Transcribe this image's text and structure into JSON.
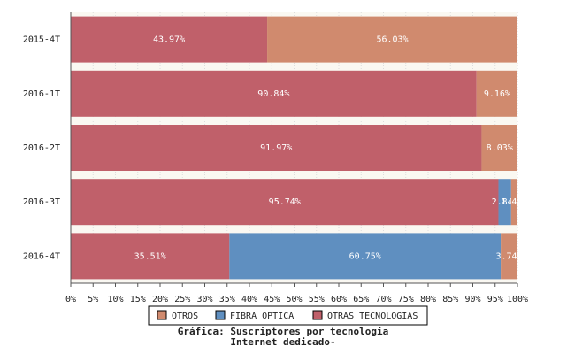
{
  "chart_data": {
    "type": "stacked-barh",
    "title": [
      "Gráfica: Suscriptores por tecnologia",
      "Internet dedicado-"
    ],
    "categories": [
      "2015-4T",
      "2016-1T",
      "2016-2T",
      "2016-3T",
      "2016-4T"
    ],
    "series": [
      {
        "name": "OTROS",
        "color": "#d08a6e",
        "values": [
          56.03,
          9.16,
          8.03,
          1.42,
          3.74
        ],
        "value_labels": [
          "56.03%",
          "9.16%",
          "8.03%",
          "1.42%",
          "3.74%"
        ]
      },
      {
        "name": "FIBRA OPTICA",
        "color": "#5f8fc0",
        "values": [
          null,
          null,
          null,
          2.84,
          60.75
        ],
        "value_labels": [
          null,
          null,
          null,
          "2.84%",
          "60.75%"
        ]
      },
      {
        "name": "OTRAS TECNOLOGIAS",
        "color": "#c0606a",
        "values": [
          43.97,
          90.84,
          91.97,
          95.74,
          35.51
        ],
        "value_labels": [
          "43.97%",
          "90.84%",
          "91.97%",
          "95.74%",
          "35.51%"
        ]
      }
    ],
    "xlim": [
      0,
      100
    ],
    "xticks": [
      {
        "value": 0,
        "label": "0%"
      },
      {
        "value": 5,
        "label": "5%"
      },
      {
        "value": 10,
        "label": "10%"
      },
      {
        "value": 15,
        "label": "15%"
      },
      {
        "value": 20,
        "label": "20%"
      },
      {
        "value": 25,
        "label": "25%"
      },
      {
        "value": 30,
        "label": "30%"
      },
      {
        "value": 35,
        "label": "35%"
      },
      {
        "value": 40,
        "label": "40%"
      },
      {
        "value": 45,
        "label": "45%"
      },
      {
        "value": 50,
        "label": "50%"
      },
      {
        "value": 55,
        "label": "55%"
      },
      {
        "value": 60,
        "label": "60%"
      },
      {
        "value": 65,
        "label": "65%"
      },
      {
        "value": 70,
        "label": "70%"
      },
      {
        "value": 75,
        "label": "75%"
      },
      {
        "value": 80,
        "label": "80%"
      },
      {
        "value": 85,
        "label": "85%"
      },
      {
        "value": 90,
        "label": "90%"
      },
      {
        "value": 95,
        "label": "95%"
      },
      {
        "value": 100,
        "label": "100%"
      }
    ],
    "grid": true
  }
}
